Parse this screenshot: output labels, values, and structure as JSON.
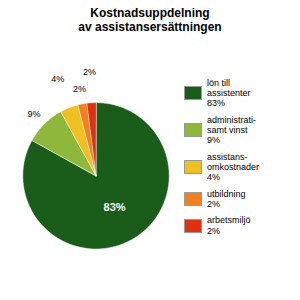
{
  "chart_data": {
    "type": "pie",
    "title": "Kostnadsuppdelning\nav assistansersättningen",
    "categories": [
      "lön till\nassistenter\n83%",
      "administrati-\nsamt vinst\n9%",
      "assistans-\nomkostnader\n4%",
      "utbildning\n2%",
      "arbetsmiljö\n2%"
    ],
    "values": [
      83,
      9,
      4,
      2,
      2
    ],
    "value_labels": [
      "83%",
      "9%",
      "4%",
      "2%",
      "2%"
    ],
    "colors": [
      "#1a5c1a",
      "#8db83a",
      "#f0c020",
      "#f08020",
      "#e03010"
    ],
    "data_labels": true,
    "legend": "right"
  }
}
